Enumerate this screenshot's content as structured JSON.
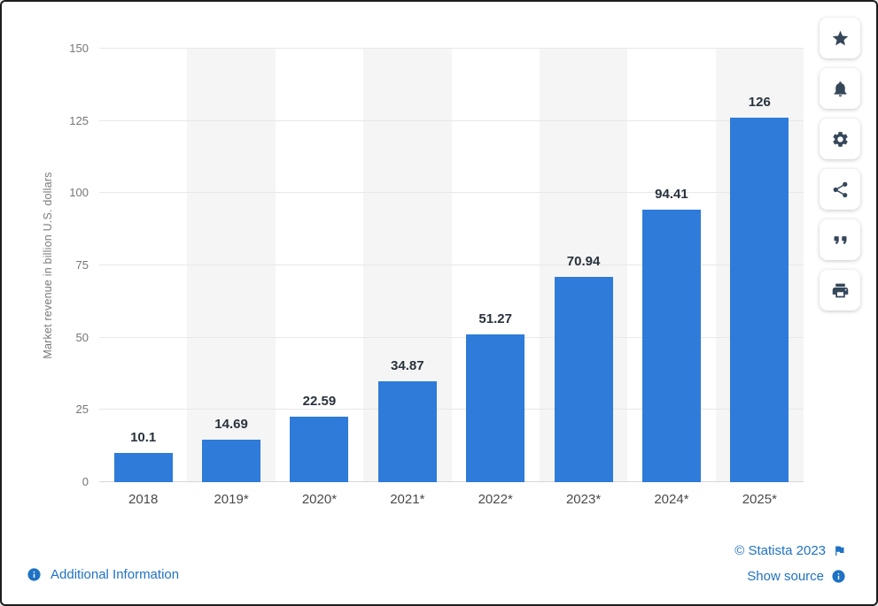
{
  "chart_data": {
    "type": "bar",
    "title": "",
    "categories": [
      "2018",
      "2019*",
      "2020*",
      "2021*",
      "2022*",
      "2023*",
      "2024*",
      "2025*"
    ],
    "values": [
      10.1,
      14.69,
      22.59,
      34.87,
      51.27,
      70.94,
      94.41,
      126
    ],
    "value_labels": [
      "10.1",
      "14.69",
      "22.59",
      "34.87",
      "51.27",
      "70.94",
      "94.41",
      "126"
    ],
    "xlabel": "",
    "ylabel": "Market revenue in billion U.S. dollars",
    "ylim": [
      0,
      150
    ],
    "yticks": [
      0,
      25,
      50,
      75,
      100,
      125,
      150
    ],
    "grid": true,
    "legend": false,
    "bar_color": "#2e7bd9",
    "band_color": "#f5f5f5"
  },
  "toolbar": {
    "icons": [
      "star-icon",
      "bell-icon",
      "gear-icon",
      "share-icon",
      "quote-icon",
      "print-icon"
    ]
  },
  "footer": {
    "additional_information": "Additional Information",
    "copyright": "© Statista 2023",
    "show_source": "Show source"
  },
  "colors": {
    "bar": "#2e7bd9",
    "link": "#1f72c4",
    "toolbar_icon": "#36475a"
  }
}
